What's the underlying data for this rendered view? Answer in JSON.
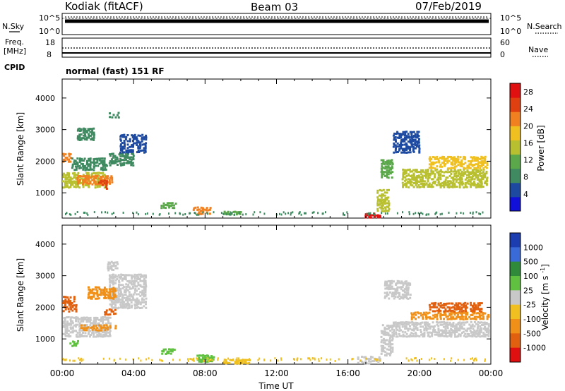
{
  "header": {
    "title": "Kodiak (fitACF)",
    "beam": "Beam 03",
    "date": "07/Feb/2019"
  },
  "status_panels": {
    "nsky_label": "N.Sky",
    "nsky_ticks": [
      "10^5",
      "10^0"
    ],
    "nsearch_label": "N.Search",
    "freq_label_1": "Freq.",
    "freq_label_2": "[MHz]",
    "freq_ticks": [
      "18",
      "8"
    ],
    "nave_label": "Nave",
    "nave_ticks": [
      "60",
      "0"
    ],
    "cpid_label": "CPID",
    "cpid_value": "normal (fast) 151 RF"
  },
  "chart_data": [
    {
      "type": "heatmap",
      "name": "power-panel",
      "ylabel": "Slant Range [km]",
      "xlabel": "",
      "xlim": [
        "00:00",
        "24:00"
      ],
      "ylim": [
        200,
        4600
      ],
      "yticks": [
        1000,
        2000,
        3000,
        4000
      ],
      "colorbar": {
        "label": "Power [dB]",
        "ticks": [
          4,
          8,
          12,
          16,
          20,
          24,
          28
        ],
        "colors": [
          "#1010d8",
          "#1d4aa0",
          "#3f8a60",
          "#5aa84a",
          "#b8c030",
          "#f0c020",
          "#f08020",
          "#e04010",
          "#e01010"
        ],
        "range": [
          0,
          30
        ]
      },
      "patches": [
        {
          "t": [
            0.0,
            0.5
          ],
          "r": [
            2000,
            2300
          ],
          "v": 22
        },
        {
          "t": [
            0.0,
            2.5
          ],
          "r": [
            1200,
            1700
          ],
          "v": 14
        },
        {
          "t": [
            0.8,
            2.8
          ],
          "r": [
            1300,
            1600
          ],
          "v": 20
        },
        {
          "t": [
            2.0,
            2.5
          ],
          "r": [
            1150,
            1450
          ],
          "v": 26
        },
        {
          "t": [
            0.5,
            2.5
          ],
          "r": [
            1750,
            2150
          ],
          "v": 9
        },
        {
          "t": [
            2.6,
            4.0
          ],
          "r": [
            1900,
            2300
          ],
          "v": 8
        },
        {
          "t": [
            3.2,
            4.7
          ],
          "r": [
            2300,
            2900
          ],
          "v": 6
        },
        {
          "t": [
            0.8,
            1.8
          ],
          "r": [
            2700,
            3100
          ],
          "v": 7
        },
        {
          "t": [
            2.6,
            3.2
          ],
          "r": [
            3400,
            3600
          ],
          "v": 8
        },
        {
          "t": [
            5.5,
            6.4
          ],
          "r": [
            550,
            750
          ],
          "v": 10
        },
        {
          "t": [
            7.3,
            8.3
          ],
          "r": [
            350,
            600
          ],
          "v": 22
        },
        {
          "t": [
            9.0,
            10.0
          ],
          "r": [
            350,
            450
          ],
          "v": 12
        },
        {
          "t": [
            16.8,
            17.8
          ],
          "r": [
            250,
            400
          ],
          "v": 28
        },
        {
          "t": [
            17.6,
            18.3
          ],
          "r": [
            450,
            1150
          ],
          "v": 16
        },
        {
          "t": [
            17.8,
            18.5
          ],
          "r": [
            1500,
            2100
          ],
          "v": 10
        },
        {
          "t": [
            19.0,
            23.8
          ],
          "r": [
            1200,
            1800
          ],
          "v": 15
        },
        {
          "t": [
            20.5,
            23.8
          ],
          "r": [
            1800,
            2200
          ],
          "v": 18
        },
        {
          "t": [
            18.5,
            20.0
          ],
          "r": [
            2300,
            3000
          ],
          "v": 6
        }
      ]
    },
    {
      "type": "heatmap",
      "name": "velocity-panel",
      "ylabel": "Slant Range [km]",
      "xlabel": "Time UT",
      "xlim": [
        "00:00",
        "24:00"
      ],
      "xticks": [
        "00:00",
        "04:00",
        "08:00",
        "12:00",
        "16:00",
        "20:00",
        "00:00"
      ],
      "ylim": [
        200,
        4600
      ],
      "yticks": [
        1000,
        2000,
        3000,
        4000
      ],
      "colorbar": {
        "label": "Velocity [m s^-1]",
        "ticks": [
          "1000",
          "500",
          "100",
          "25",
          "-25",
          "-100",
          "-500",
          "-1000"
        ],
        "colors": [
          "#1c3db0",
          "#3a6ad8",
          "#2f8a3a",
          "#60c040",
          "#c8c8c8",
          "#f0c020",
          "#f09018",
          "#e06010",
          "#e01010"
        ]
      },
      "patches": [
        {
          "t": [
            0.0,
            0.8
          ],
          "r": [
            1900,
            2400
          ],
          "v": "-500"
        },
        {
          "t": [
            0.0,
            2.7
          ],
          "r": [
            1100,
            1750
          ],
          "v": "25"
        },
        {
          "t": [
            1.0,
            3.0
          ],
          "r": [
            1300,
            1500
          ],
          "v": "-100"
        },
        {
          "t": [
            2.2,
            3.0
          ],
          "r": [
            1800,
            2000
          ],
          "v": "-500"
        },
        {
          "t": [
            0.4,
            0.9
          ],
          "r": [
            800,
            1000
          ],
          "v": "100"
        },
        {
          "t": [
            2.6,
            4.7
          ],
          "r": [
            2000,
            3100
          ],
          "v": "25"
        },
        {
          "t": [
            2.5,
            3.1
          ],
          "r": [
            3200,
            3500
          ],
          "v": "25"
        },
        {
          "t": [
            1.4,
            3.0
          ],
          "r": [
            2300,
            2700
          ],
          "v": "-100"
        },
        {
          "t": [
            5.5,
            6.3
          ],
          "r": [
            550,
            750
          ],
          "v": "100"
        },
        {
          "t": [
            7.5,
            8.5
          ],
          "r": [
            300,
            550
          ],
          "v": "100"
        },
        {
          "t": [
            9.0,
            10.5
          ],
          "r": [
            250,
            400
          ],
          "v": "-25"
        },
        {
          "t": [
            16.5,
            17.8
          ],
          "r": [
            250,
            500
          ],
          "v": "25"
        },
        {
          "t": [
            17.8,
            18.5
          ],
          "r": [
            500,
            1500
          ],
          "v": "25"
        },
        {
          "t": [
            18.5,
            23.9
          ],
          "r": [
            1100,
            1600
          ],
          "v": "25"
        },
        {
          "t": [
            19.5,
            23.9
          ],
          "r": [
            1650,
            1900
          ],
          "v": "-100"
        },
        {
          "t": [
            20.5,
            23.5
          ],
          "r": [
            1900,
            2200
          ],
          "v": "-500"
        },
        {
          "t": [
            18.0,
            19.5
          ],
          "r": [
            2300,
            2900
          ],
          "v": "25"
        }
      ]
    }
  ]
}
